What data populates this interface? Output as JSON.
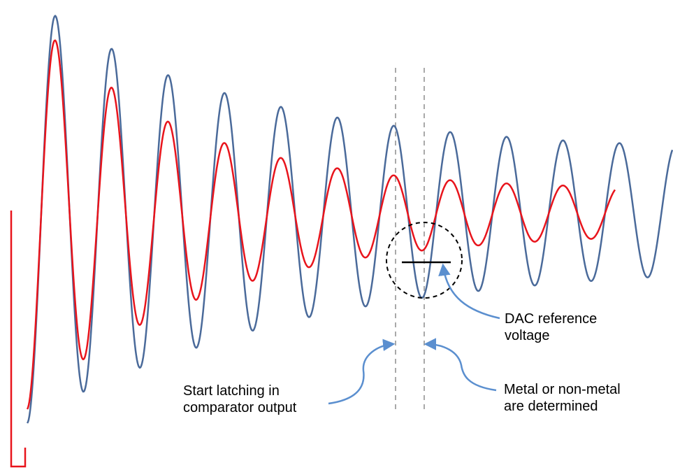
{
  "annotations": {
    "dac_reference": {
      "line1": "DAC reference",
      "line2": "voltage"
    },
    "start_latching": {
      "line1": "Start latching in",
      "line2": "comparator output"
    },
    "metal_determined": {
      "line1": "Metal or non-metal",
      "line2": "are determined"
    }
  },
  "colors": {
    "blue_waveform": "#4a6a9a",
    "red_waveform": "#e8141c",
    "arrow": "#5b8fcf",
    "marker_line": "#a9a9a9",
    "reference_line": "#000000"
  },
  "icons": {
    "pointer": "arrow-icon",
    "detection_zone": "dashed-circle-icon"
  }
}
